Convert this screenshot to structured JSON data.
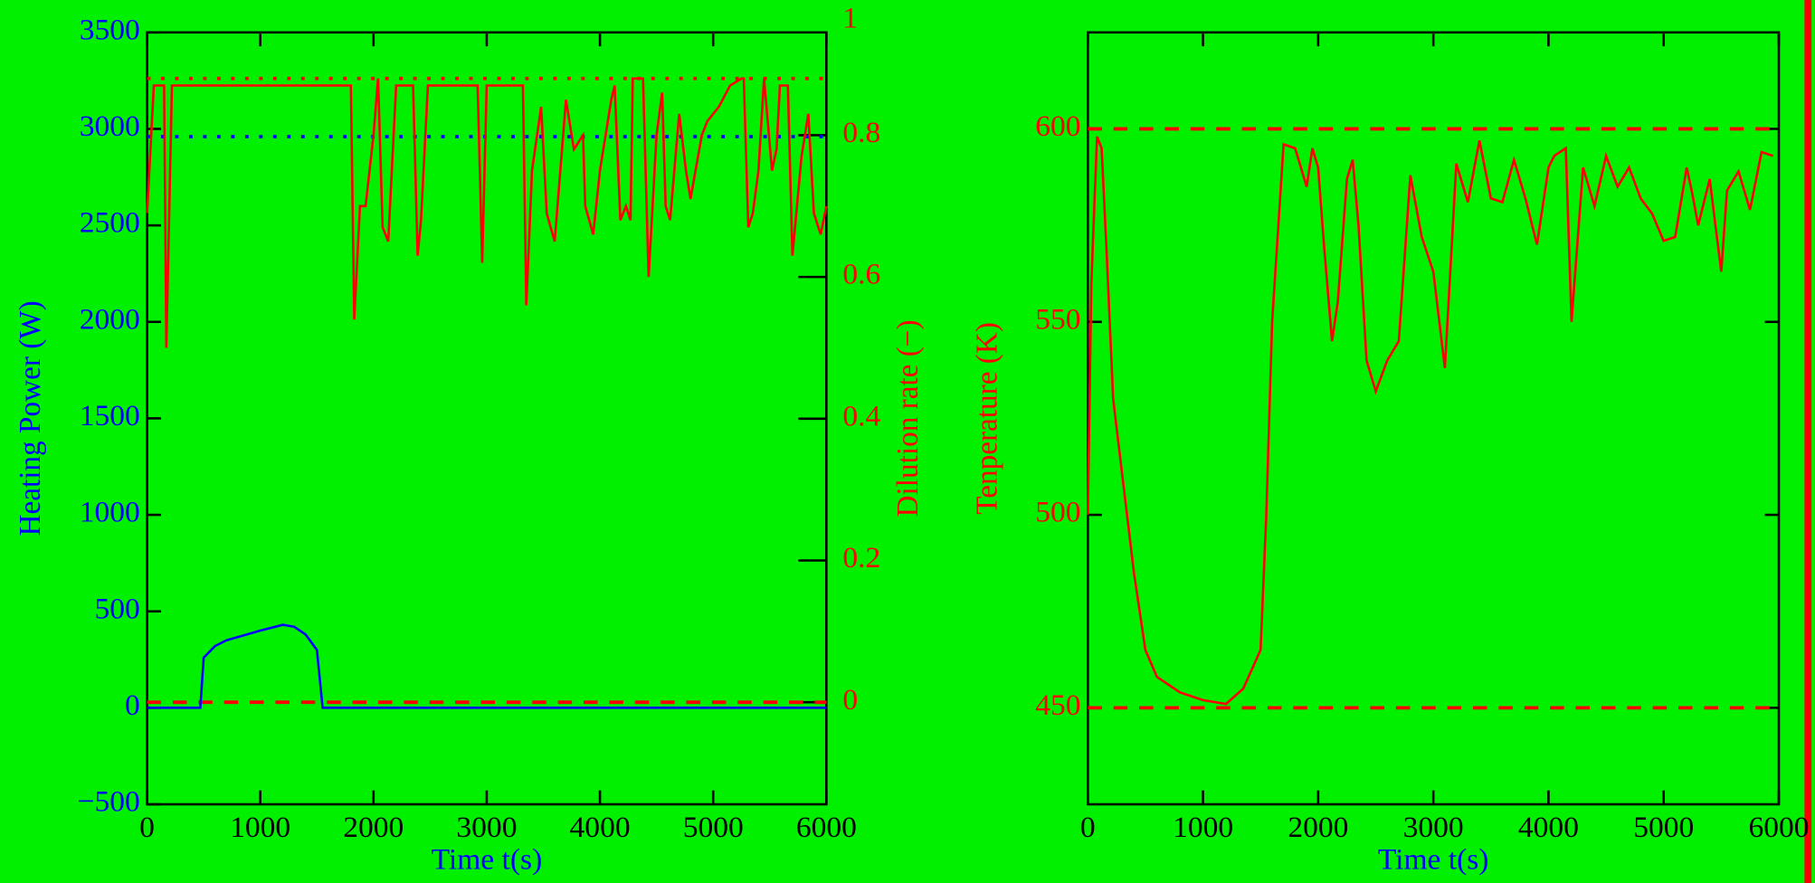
{
  "chart_data": [
    {
      "type": "line",
      "xlabel": "Time t(s)",
      "ylabel": "Heating Power (W)",
      "y2label": "Dilution rate (−)",
      "xlim": [
        0,
        6000
      ],
      "xticks": [
        0,
        1000,
        2000,
        3000,
        4000,
        5000,
        6000
      ],
      "ylim": [
        -500,
        3500
      ],
      "yticks": [
        {
          "value": -500,
          "label": "−500"
        },
        0,
        500,
        1000,
        1500,
        2000,
        2500,
        3000,
        3500
      ],
      "y2lim": [
        -0.144,
        0.945
      ],
      "y2ticks": [
        0,
        0.2,
        0.4,
        0.6,
        0.8,
        1
      ],
      "hlines": [
        {
          "value": 2960,
          "color": "#0000ff",
          "style": "dotted"
        },
        {
          "value": 0.88,
          "axis": "y2",
          "color": "#ff0000",
          "style": "dotted"
        },
        {
          "value": 0,
          "axis": "y2",
          "color": "#ff0000",
          "style": "dashed"
        }
      ],
      "series": [
        {
          "color": "#0000ff",
          "x": [
            0,
            470,
            500,
            600,
            700,
            1000,
            1200,
            1300,
            1400,
            1500,
            1550,
            6000
          ],
          "values": [
            0,
            0,
            260,
            320,
            350,
            400,
            430,
            420,
            380,
            300,
            0,
            0
          ]
        },
        {
          "color": "#ff0000",
          "axis": "y2",
          "x": [
            0,
            60,
            150,
            170,
            220,
            1800,
            1830,
            1880,
            1930,
            2000,
            2040,
            2080,
            2130,
            2200,
            2350,
            2390,
            2420,
            2480,
            2920,
            2960,
            3000,
            3320,
            3350,
            3400,
            3480,
            3530,
            3600,
            3700,
            3770,
            3850,
            3870,
            3940,
            4000,
            4100,
            4130,
            4180,
            4230,
            4270,
            4290,
            4380,
            4430,
            4500,
            4550,
            4580,
            4620,
            4700,
            4760,
            4800,
            4900,
            4950,
            5050,
            5150,
            5250,
            5270,
            5310,
            5350,
            5400,
            5450,
            5520,
            5560,
            5590,
            5660,
            5700,
            5780,
            5840,
            5890,
            5950,
            6000
          ],
          "values": [
            0.69,
            0.87,
            0.87,
            0.5,
            0.87,
            0.87,
            0.54,
            0.7,
            0.7,
            0.8,
            0.88,
            0.67,
            0.65,
            0.87,
            0.87,
            0.63,
            0.68,
            0.87,
            0.87,
            0.62,
            0.87,
            0.87,
            0.56,
            0.75,
            0.84,
            0.69,
            0.65,
            0.85,
            0.78,
            0.8,
            0.7,
            0.66,
            0.75,
            0.85,
            0.87,
            0.68,
            0.7,
            0.68,
            0.88,
            0.88,
            0.6,
            0.8,
            0.86,
            0.7,
            0.68,
            0.83,
            0.75,
            0.71,
            0.8,
            0.82,
            0.84,
            0.87,
            0.88,
            0.88,
            0.67,
            0.69,
            0.75,
            0.88,
            0.75,
            0.78,
            0.87,
            0.87,
            0.63,
            0.77,
            0.83,
            0.69,
            0.66,
            0.7
          ]
        }
      ]
    },
    {
      "type": "line",
      "xlabel": "Time t(s)",
      "ylabel": "Tenperature (K)",
      "xlim": [
        0,
        6000
      ],
      "xticks": [
        0,
        1000,
        2000,
        3000,
        4000,
        5000,
        6000
      ],
      "ylim": [
        425,
        625
      ],
      "yticks": [
        450,
        500,
        550,
        600
      ],
      "hlines": [
        {
          "value": 600,
          "color": "#ff0000",
          "style": "dashed"
        },
        {
          "value": 450,
          "color": "#ff0000",
          "style": "dashed"
        }
      ],
      "series": [
        {
          "color": "#ff0000",
          "x": [
            0,
            30,
            80,
            120,
            160,
            220,
            300,
            400,
            500,
            600,
            800,
            1000,
            1200,
            1350,
            1500,
            1550,
            1600,
            1700,
            1800,
            1900,
            1950,
            2000,
            2050,
            2120,
            2170,
            2250,
            2300,
            2350,
            2420,
            2500,
            2600,
            2700,
            2800,
            2900,
            3000,
            3100,
            3200,
            3300,
            3400,
            3500,
            3600,
            3700,
            3800,
            3900,
            4000,
            4050,
            4150,
            4200,
            4300,
            4400,
            4500,
            4600,
            4700,
            4800,
            4900,
            5000,
            5100,
            5200,
            5250,
            5300,
            5400,
            5450,
            5500,
            5550,
            5650,
            5750,
            5850,
            5950
          ],
          "values": [
            500,
            560,
            598,
            595,
            570,
            530,
            510,
            485,
            465,
            458,
            454,
            452,
            451,
            455,
            465,
            500,
            550,
            596,
            595,
            585,
            595,
            590,
            570,
            545,
            555,
            587,
            592,
            575,
            540,
            532,
            540,
            545,
            588,
            572,
            563,
            538,
            591,
            581,
            597,
            582,
            581,
            592,
            582,
            570,
            590,
            593,
            595,
            550,
            590,
            580,
            593,
            585,
            590,
            582,
            578,
            571,
            572,
            590,
            583,
            575,
            587,
            575,
            563,
            584,
            589,
            579,
            594,
            593
          ]
        }
      ]
    }
  ]
}
